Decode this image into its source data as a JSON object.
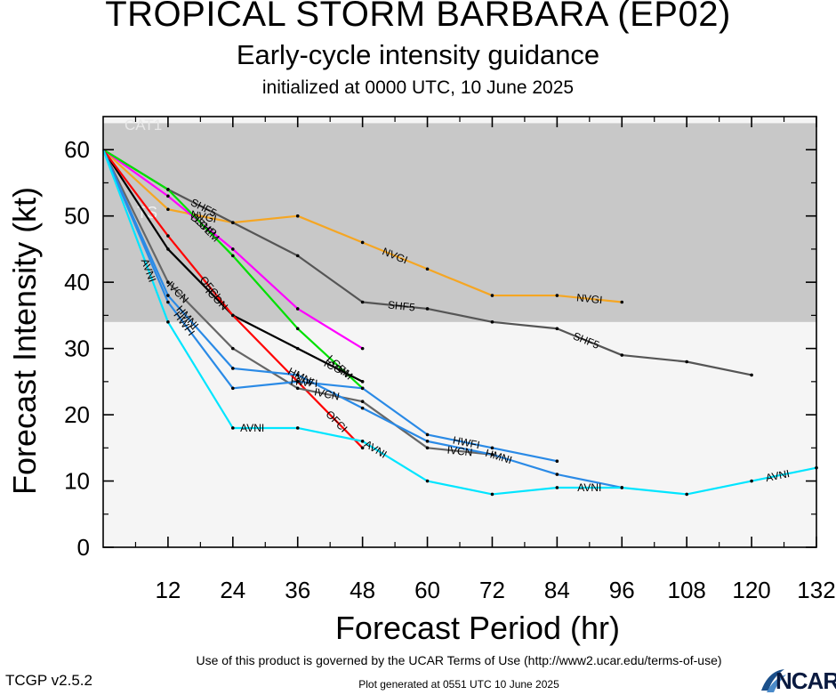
{
  "header": {
    "title": "TROPICAL STORM BARBARA (EP02)",
    "subtitle": "Early-cycle intensity guidance",
    "init_line": "initialized at 0000 UTC, 10 June 2025"
  },
  "footer": {
    "terms": "Use of this product is governed by the UCAR Terms of Use (http://www2.ucar.edu/terms-of-use)",
    "generated": "Plot generated at 0551 UTC   10 June 2025",
    "version": "TCGP v2.5.2",
    "logo_text": "NCAR"
  },
  "chart_data": {
    "type": "line",
    "xlabel": "Forecast Period (hr)",
    "ylabel": "Forecast Intensity (kt)",
    "xlim": [
      0,
      132
    ],
    "ylim": [
      0,
      65
    ],
    "xticks": [
      12,
      24,
      36,
      48,
      60,
      72,
      84,
      96,
      108,
      120,
      132
    ],
    "yticks": [
      0,
      10,
      20,
      30,
      40,
      50,
      60
    ],
    "grid": false,
    "bands": [
      {
        "label": "CAT1",
        "y0": 34,
        "y1": 64,
        "color": "#c8c8c8"
      },
      {
        "label": "TS",
        "y0": 34,
        "y1": 64,
        "color": "#c8c8c8"
      }
    ],
    "below_band_color": "#f5f5f5",
    "series": [
      {
        "name": "NVGI",
        "color": "#f5a623",
        "x": [
          0,
          12,
          24,
          36,
          48,
          60,
          72,
          84,
          96
        ],
        "y": [
          60,
          51,
          49,
          50,
          46,
          42,
          38,
          38,
          37
        ]
      },
      {
        "name": "SHF5",
        "color": "#555555",
        "x": [
          0,
          12,
          24,
          36,
          48,
          60,
          72,
          84,
          96,
          108,
          120
        ],
        "y": [
          60,
          54,
          49,
          44,
          37,
          36,
          34,
          33,
          29,
          28,
          26
        ]
      },
      {
        "name": "DSHP",
        "color": "#ff00ff",
        "x": [
          0,
          12,
          24,
          36,
          48
        ],
        "y": [
          60,
          53,
          45,
          36,
          30
        ]
      },
      {
        "name": "LGEM",
        "color": "#00e000",
        "x": [
          0,
          12,
          24,
          36,
          48
        ],
        "y": [
          60,
          54,
          44,
          33,
          24
        ]
      },
      {
        "name": "ICON",
        "color": "#000000",
        "x": [
          0,
          12,
          24,
          36,
          48
        ],
        "y": [
          60,
          45,
          35,
          30,
          25
        ]
      },
      {
        "name": "OFCI",
        "color": "#ff0000",
        "x": [
          0,
          12,
          24,
          36,
          48
        ],
        "y": [
          60,
          47,
          35,
          25,
          15
        ]
      },
      {
        "name": "IVCN",
        "color": "#666666",
        "x": [
          0,
          12,
          24,
          36,
          48,
          60,
          72
        ],
        "y": [
          60,
          40,
          30,
          24,
          22,
          15,
          14
        ]
      },
      {
        "name": "HWFI",
        "color": "#2a8ae6",
        "x": [
          0,
          12,
          24,
          36,
          48,
          60,
          72,
          84
        ],
        "y": [
          60,
          37,
          24,
          25,
          24,
          17,
          15,
          13
        ]
      },
      {
        "name": "HMNI",
        "color": "#2a8ae6",
        "x": [
          0,
          12,
          24,
          36,
          48,
          60,
          72,
          84,
          96
        ],
        "y": [
          60,
          38,
          27,
          26,
          21,
          16,
          14,
          11,
          9
        ]
      },
      {
        "name": "AVNI",
        "color": "#00e5ff",
        "x": [
          0,
          12,
          24,
          36,
          48,
          60,
          72,
          84,
          96,
          108,
          120,
          132
        ],
        "y": [
          60,
          34,
          18,
          18,
          16,
          10,
          8,
          9,
          9,
          8,
          10,
          12
        ]
      }
    ]
  }
}
